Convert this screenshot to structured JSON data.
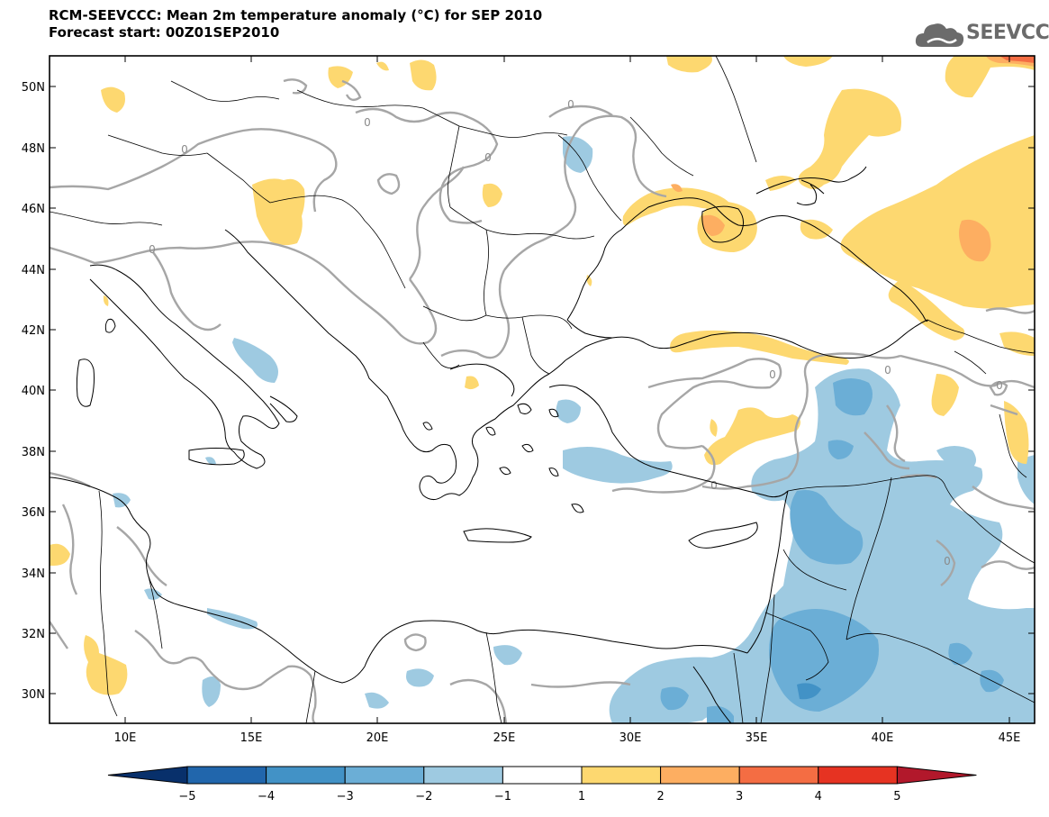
{
  "title": {
    "line1": "RCM-SEEVCCC: Mean 2m temperature anomaly (°C) for SEP 2010",
    "line2": "Forecast start: 00Z01SEP2010"
  },
  "logo": {
    "text": "SEEVCCC",
    "icon": "cloud-icon"
  },
  "map": {
    "lat_labels": [
      "50N",
      "48N",
      "46N",
      "44N",
      "42N",
      "40N",
      "38N",
      "36N",
      "34N",
      "32N",
      "30N"
    ],
    "lon_labels": [
      "10E",
      "15E",
      "20E",
      "25E",
      "30E",
      "35E",
      "40E",
      "45E"
    ],
    "contour_label": "0",
    "colors": {
      "neg1": "#9ecae1",
      "neg2": "#6baed6",
      "neg3": "#4292c6",
      "pos1": "#fdd870",
      "pos2": "#fdae61",
      "pos3": "#f46d43",
      "pos4": "#e63322",
      "contour": "#a6a6a6",
      "coast": "#000000"
    }
  },
  "colorbar": {
    "labels": [
      "−5",
      "−4",
      "−3",
      "−2",
      "−1",
      "1",
      "2",
      "3",
      "4",
      "5"
    ],
    "colors": [
      "#08306b",
      "#2166ac",
      "#4292c6",
      "#6baed6",
      "#9ecae1",
      "#ffffff",
      "#fdd870",
      "#fdae61",
      "#f46d43",
      "#e63322",
      "#b2182b"
    ]
  }
}
